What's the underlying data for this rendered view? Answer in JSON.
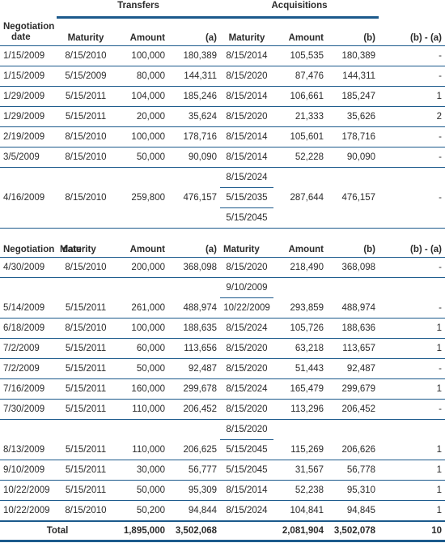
{
  "groups": {
    "transfers": "Transfers",
    "acquisitions": "Acquisitions"
  },
  "headers": {
    "negotiation_line1": "Negotiation",
    "negotiation_line2": "date",
    "maturity": "Maturity",
    "amount": "Amount",
    "a": "(a)",
    "b": "(b)",
    "diff": "(b) - (a)"
  },
  "section1": [
    {
      "date": "1/15/2009",
      "t_maturity": "8/15/2010",
      "t_amount": "100,000",
      "a": "180,389",
      "acq": [
        "8/15/2014"
      ],
      "a_amount": "105,535",
      "b": "180,389",
      "diff": "-"
    },
    {
      "date": "1/15/2009",
      "t_maturity": "5/15/2009",
      "t_amount": "80,000",
      "a": "144,311",
      "acq": [
        "8/15/2020"
      ],
      "a_amount": "87,476",
      "b": "144,311",
      "diff": "-"
    },
    {
      "date": "1/29/2009",
      "t_maturity": "5/15/2011",
      "t_amount": "104,000",
      "a": "185,246",
      "acq": [
        "8/15/2014"
      ],
      "a_amount": "106,661",
      "b": "185,247",
      "diff": "1"
    },
    {
      "date": "1/29/2009",
      "t_maturity": "5/15/2011",
      "t_amount": "20,000",
      "a": "35,624",
      "acq": [
        "8/15/2020"
      ],
      "a_amount": "21,333",
      "b": "35,626",
      "diff": "2"
    },
    {
      "date": "2/19/2009",
      "t_maturity": "8/15/2010",
      "t_amount": "100,000",
      "a": "178,716",
      "acq": [
        "8/15/2014"
      ],
      "a_amount": "105,601",
      "b": "178,716",
      "diff": "-"
    },
    {
      "date": "3/5/2009",
      "t_maturity": "8/15/2010",
      "t_amount": "50,000",
      "a": "90,090",
      "acq": [
        "8/15/2014"
      ],
      "a_amount": "52,228",
      "b": "90,090",
      "diff": "-"
    },
    {
      "date": "4/16/2009",
      "t_maturity": "8/15/2010",
      "t_amount": "259,800",
      "a": "476,157",
      "acq": [
        "8/15/2024",
        "5/15/2035",
        "5/15/2045"
      ],
      "a_amount": "287,644",
      "b": "476,157",
      "diff": "-"
    }
  ],
  "section2": [
    {
      "date": "4/30/2009",
      "t_maturity": "8/15/2010",
      "t_amount": "200,000",
      "a": "368,098",
      "acq": [
        "8/15/2020"
      ],
      "a_amount": "218,490",
      "b": "368,098",
      "diff": "-"
    },
    {
      "date": "5/14/2009",
      "t_maturity": "5/15/2011",
      "t_amount": "261,000",
      "a": "488,974",
      "acq": [
        "9/10/2009",
        "10/22/2009"
      ],
      "a_amount": "293,859",
      "b": "488,974",
      "diff": "-"
    },
    {
      "date": "6/18/2009",
      "t_maturity": "8/15/2010",
      "t_amount": "100,000",
      "a": "188,635",
      "acq": [
        "8/15/2024"
      ],
      "a_amount": "105,726",
      "b": "188,636",
      "diff": "1"
    },
    {
      "date": "7/2/2009",
      "t_maturity": "5/15/2011",
      "t_amount": "60,000",
      "a": "113,656",
      "acq": [
        "8/15/2020"
      ],
      "a_amount": "63,218",
      "b": "113,657",
      "diff": "1"
    },
    {
      "date": "7/2/2009",
      "t_maturity": "5/15/2011",
      "t_amount": "50,000",
      "a": "92,487",
      "acq": [
        "8/15/2020"
      ],
      "a_amount": "51,443",
      "b": "92,487",
      "diff": "-"
    },
    {
      "date": "7/16/2009",
      "t_maturity": "5/15/2011",
      "t_amount": "160,000",
      "a": "299,678",
      "acq": [
        "8/15/2024"
      ],
      "a_amount": "165,479",
      "b": "299,679",
      "diff": "1"
    },
    {
      "date": "7/30/2009",
      "t_maturity": "5/15/2011",
      "t_amount": "110,000",
      "a": "206,452",
      "acq": [
        "8/15/2020"
      ],
      "a_amount": "113,296",
      "b": "206,452",
      "diff": "-"
    },
    {
      "date": "8/13/2009",
      "t_maturity": "5/15/2011",
      "t_amount": "110,000",
      "a": "206,625",
      "acq": [
        "8/15/2020",
        "5/15/2045"
      ],
      "a_amount": "115,269",
      "b": "206,626",
      "diff": "1"
    },
    {
      "date": "9/10/2009",
      "t_maturity": "5/15/2011",
      "t_amount": "30,000",
      "a": "56,777",
      "acq": [
        "5/15/2045"
      ],
      "a_amount": "31,567",
      "b": "56,778",
      "diff": "1"
    },
    {
      "date": "10/22/2009",
      "t_maturity": "5/15/2011",
      "t_amount": "50,000",
      "a": "95,309",
      "acq": [
        "8/15/2014"
      ],
      "a_amount": "52,238",
      "b": "95,310",
      "diff": "1"
    },
    {
      "date": "10/22/2009",
      "t_maturity": "8/15/2010",
      "t_amount": "50,200",
      "a": "94,844",
      "acq": [
        "8/15/2024"
      ],
      "a_amount": "104,841",
      "b": "94,845",
      "diff": "1"
    }
  ],
  "total": {
    "label": "Total",
    "t_amount": "1,895,000",
    "a": "3,502,068",
    "a_amount": "2,081,904",
    "b": "3,502,078",
    "diff": "10"
  }
}
